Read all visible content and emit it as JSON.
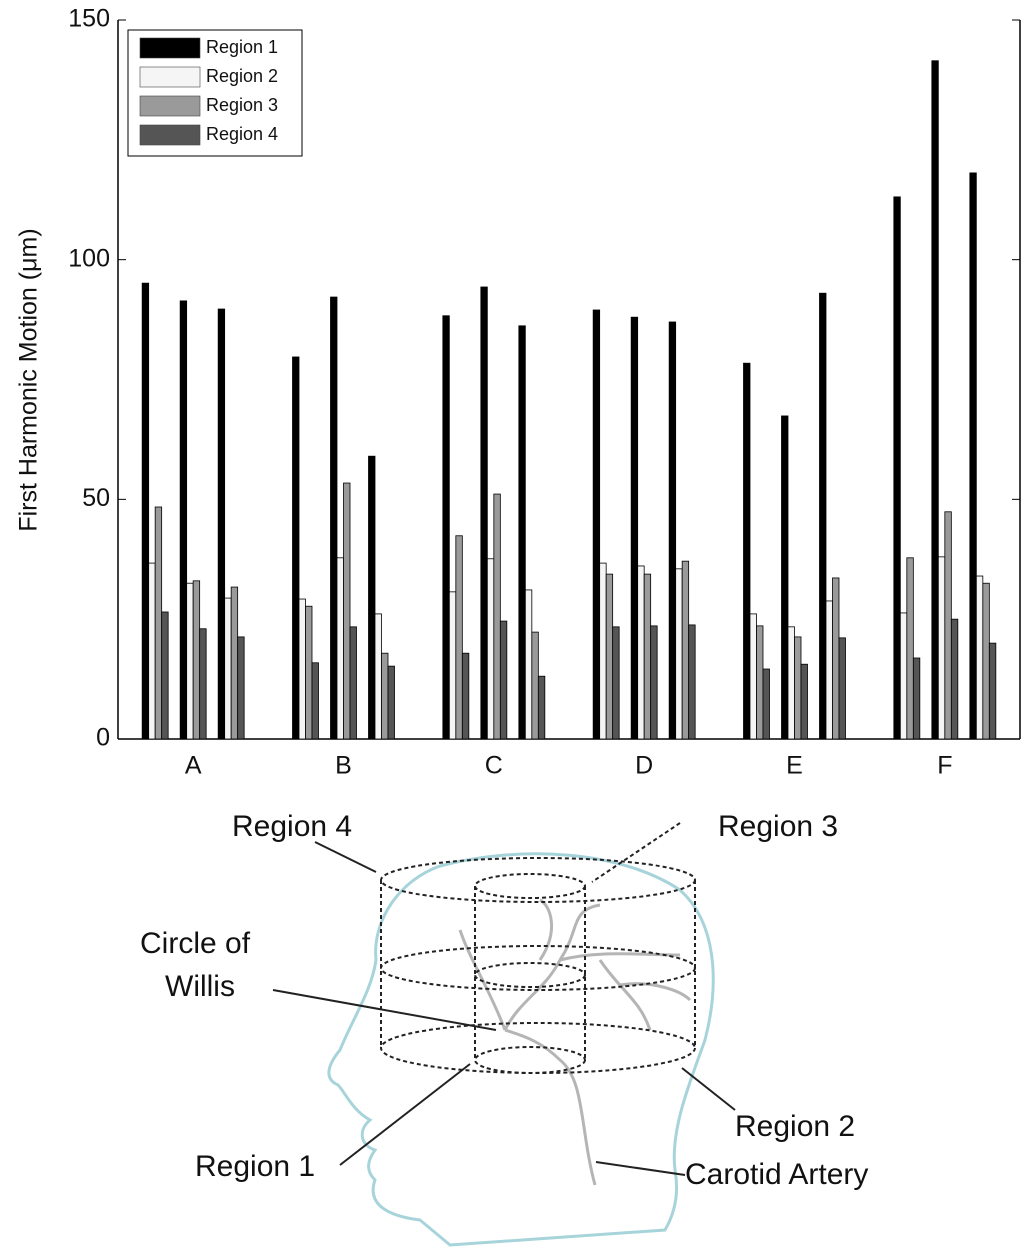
{
  "chart_data": {
    "type": "bar",
    "ylabel": "First Harmonic Motion (μm)",
    "categories": [
      null,
      "A",
      null,
      null,
      "B",
      null,
      null,
      "C",
      null,
      null,
      "D",
      null,
      null,
      "E",
      null,
      null,
      "F",
      null
    ],
    "series": [
      {
        "name": "Region 1",
        "color": "#000000",
        "values": [
          95.1,
          91.4,
          89.7,
          79.7,
          92.2,
          59,
          88.3,
          94.3,
          86.2,
          89.5,
          88,
          87,
          78.4,
          67.4,
          93,
          113.1,
          141.5,
          118.1
        ]
      },
      {
        "name": "Region 2",
        "color": "#f5f5f5",
        "values": [
          36.7,
          32.5,
          29.4,
          29.2,
          37.8,
          26.1,
          30.7,
          37.6,
          31.1,
          36.7,
          36.1,
          35.5,
          26.1,
          23.4,
          28.8,
          26.3,
          38,
          34
        ]
      },
      {
        "name": "Region 3",
        "color": "#9a9a9a",
        "values": [
          48.4,
          33,
          31.7,
          27.7,
          53.4,
          17.9,
          42.4,
          51.1,
          22.3,
          34.4,
          34.4,
          37.1,
          23.6,
          21.3,
          33.6,
          37.8,
          47.4,
          32.5
        ]
      },
      {
        "name": "Region 4",
        "color": "#555555",
        "values": [
          26.5,
          23,
          21.3,
          15.9,
          23.4,
          15.2,
          17.9,
          24.6,
          13.1,
          23.4,
          23.6,
          23.8,
          14.6,
          15.6,
          21.1,
          16.9,
          25,
          20
        ]
      }
    ],
    "ylim": [
      0,
      150
    ],
    "yticks": [
      0,
      50,
      100,
      150
    ],
    "legend": "upper left"
  },
  "diagram": {
    "labels": [
      "Region 4",
      "Region 3",
      "Circle of",
      "Willis",
      "Region 1",
      "Region 2",
      "Carotid Artery"
    ]
  }
}
